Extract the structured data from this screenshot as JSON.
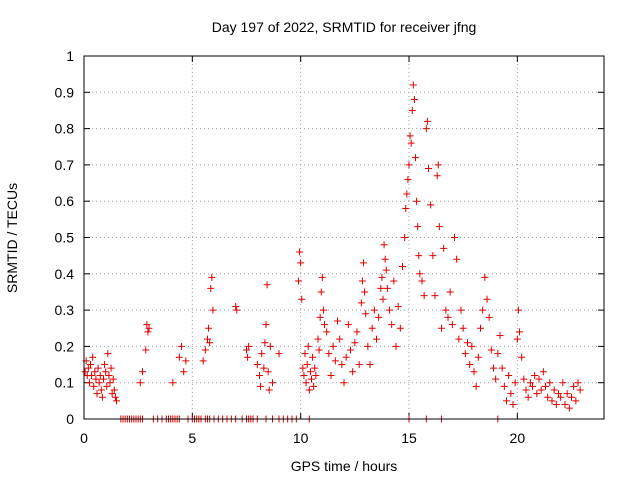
{
  "chart_data": {
    "type": "scatter",
    "title": "Day 197 of 2022, SRMTID for receiver jfng",
    "xlabel": "GPS time / hours",
    "ylabel": "SRMTID / TECUs",
    "xlim": [
      0,
      24
    ],
    "ylim": [
      0,
      1
    ],
    "x_ticks": [
      0,
      5,
      10,
      15,
      20
    ],
    "y_ticks": [
      0,
      0.1,
      0.2,
      0.3,
      0.4,
      0.5,
      0.6,
      0.7,
      0.8,
      0.9,
      1
    ],
    "x_tick_labels": [
      "0",
      "5",
      "10",
      "15",
      "20"
    ],
    "y_tick_labels": [
      "0",
      "0.1",
      "0.2",
      "0.3",
      "0.4",
      "0.5",
      "0.6",
      "0.7",
      "0.8",
      "0.9",
      "1"
    ],
    "grid": true,
    "marker": "+",
    "marker_color": "#e00000",
    "series": [
      {
        "name": "SRMTID",
        "points": [
          [
            0.05,
            0.13
          ],
          [
            0.1,
            0.16
          ],
          [
            0.15,
            0.12
          ],
          [
            0.2,
            0.14
          ],
          [
            0.25,
            0.1
          ],
          [
            0.3,
            0.15
          ],
          [
            0.35,
            0.12
          ],
          [
            0.4,
            0.17
          ],
          [
            0.45,
            0.09
          ],
          [
            0.5,
            0.13
          ],
          [
            0.55,
            0.11
          ],
          [
            0.6,
            0.07
          ],
          [
            0.65,
            0.14
          ],
          [
            0.7,
            0.1
          ],
          [
            0.75,
            0.12
          ],
          [
            0.8,
            0.08
          ],
          [
            0.85,
            0.06
          ],
          [
            0.9,
            0.11
          ],
          [
            0.95,
            0.15
          ],
          [
            1.0,
            0.13
          ],
          [
            1.05,
            0.09
          ],
          [
            1.1,
            0.18
          ],
          [
            1.15,
            0.12
          ],
          [
            1.2,
            0.1
          ],
          [
            1.25,
            0.14
          ],
          [
            1.3,
            0.07
          ],
          [
            1.35,
            0.11
          ],
          [
            1.4,
            0.08
          ],
          [
            1.45,
            0.06
          ],
          [
            1.5,
            0.05
          ],
          [
            2.6,
            0.1
          ],
          [
            2.7,
            0.13
          ],
          [
            2.85,
            0.19
          ],
          [
            2.9,
            0.26
          ],
          [
            2.95,
            0.24
          ],
          [
            3.0,
            0.25
          ],
          [
            4.1,
            0.1
          ],
          [
            4.4,
            0.17
          ],
          [
            4.5,
            0.2
          ],
          [
            4.6,
            0.13
          ],
          [
            4.7,
            0.16
          ],
          [
            5.5,
            0.16
          ],
          [
            5.6,
            0.19
          ],
          [
            5.7,
            0.22
          ],
          [
            5.75,
            0.25
          ],
          [
            5.8,
            0.21
          ],
          [
            5.85,
            0.36
          ],
          [
            5.9,
            0.39
          ],
          [
            5.95,
            0.3
          ],
          [
            7.0,
            0.31
          ],
          [
            7.05,
            0.3
          ],
          [
            7.5,
            0.19
          ],
          [
            7.55,
            0.17
          ],
          [
            7.6,
            0.2
          ],
          [
            8.0,
            0.15
          ],
          [
            8.1,
            0.12
          ],
          [
            8.15,
            0.09
          ],
          [
            8.2,
            0.18
          ],
          [
            8.3,
            0.14
          ],
          [
            8.35,
            0.21
          ],
          [
            8.4,
            0.26
          ],
          [
            8.45,
            0.37
          ],
          [
            8.5,
            0.13
          ],
          [
            8.55,
            0.08
          ],
          [
            8.6,
            0.2
          ],
          [
            8.7,
            0.1
          ],
          [
            9.0,
            0.18
          ],
          [
            9.9,
            0.38
          ],
          [
            9.95,
            0.46
          ],
          [
            10.0,
            0.43
          ],
          [
            10.05,
            0.33
          ],
          [
            10.1,
            0.14
          ],
          [
            10.15,
            0.12
          ],
          [
            10.2,
            0.18
          ],
          [
            10.25,
            0.1
          ],
          [
            10.3,
            0.15
          ],
          [
            10.35,
            0.2
          ],
          [
            10.4,
            0.08
          ],
          [
            10.45,
            0.13
          ],
          [
            10.5,
            0.11
          ],
          [
            10.55,
            0.17
          ],
          [
            10.6,
            0.09
          ],
          [
            10.65,
            0.14
          ],
          [
            10.7,
            0.12
          ],
          [
            10.8,
            0.22
          ],
          [
            10.85,
            0.19
          ],
          [
            10.9,
            0.28
          ],
          [
            10.95,
            0.35
          ],
          [
            11.0,
            0.39
          ],
          [
            11.05,
            0.3
          ],
          [
            11.1,
            0.26
          ],
          [
            11.2,
            0.24
          ],
          [
            11.3,
            0.18
          ],
          [
            11.4,
            0.12
          ],
          [
            11.5,
            0.2
          ],
          [
            11.6,
            0.16
          ],
          [
            11.7,
            0.27
          ],
          [
            11.8,
            0.22
          ],
          [
            11.9,
            0.15
          ],
          [
            12.0,
            0.1
          ],
          [
            12.1,
            0.17
          ],
          [
            12.2,
            0.26
          ],
          [
            12.3,
            0.19
          ],
          [
            12.4,
            0.13
          ],
          [
            12.5,
            0.21
          ],
          [
            12.6,
            0.24
          ],
          [
            12.7,
            0.15
          ],
          [
            12.8,
            0.32
          ],
          [
            12.85,
            0.38
          ],
          [
            12.9,
            0.43
          ],
          [
            12.95,
            0.35
          ],
          [
            13.0,
            0.29
          ],
          [
            13.1,
            0.2
          ],
          [
            13.2,
            0.15
          ],
          [
            13.3,
            0.25
          ],
          [
            13.4,
            0.3
          ],
          [
            13.5,
            0.22
          ],
          [
            13.6,
            0.28
          ],
          [
            13.7,
            0.36
          ],
          [
            13.75,
            0.39
          ],
          [
            13.8,
            0.33
          ],
          [
            13.85,
            0.48
          ],
          [
            13.9,
            0.44
          ],
          [
            13.95,
            0.41
          ],
          [
            14.0,
            0.36
          ],
          [
            14.1,
            0.3
          ],
          [
            14.2,
            0.26
          ],
          [
            14.3,
            0.38
          ],
          [
            14.4,
            0.2
          ],
          [
            14.5,
            0.31
          ],
          [
            14.6,
            0.25
          ],
          [
            14.7,
            0.42
          ],
          [
            14.8,
            0.5
          ],
          [
            14.85,
            0.58
          ],
          [
            14.9,
            0.62
          ],
          [
            14.95,
            0.66
          ],
          [
            15.0,
            0.7
          ],
          [
            15.05,
            0.78
          ],
          [
            15.1,
            0.76
          ],
          [
            15.15,
            0.85
          ],
          [
            15.2,
            0.92
          ],
          [
            15.25,
            0.88
          ],
          [
            15.3,
            0.72
          ],
          [
            15.35,
            0.6
          ],
          [
            15.4,
            0.53
          ],
          [
            15.45,
            0.45
          ],
          [
            15.5,
            0.4
          ],
          [
            15.6,
            0.38
          ],
          [
            15.7,
            0.34
          ],
          [
            15.8,
            0.8
          ],
          [
            15.85,
            0.82
          ],
          [
            15.9,
            0.69
          ],
          [
            16.0,
            0.59
          ],
          [
            16.1,
            0.45
          ],
          [
            16.2,
            0.34
          ],
          [
            16.3,
            0.67
          ],
          [
            16.35,
            0.7
          ],
          [
            16.4,
            0.53
          ],
          [
            16.5,
            0.25
          ],
          [
            16.6,
            0.47
          ],
          [
            16.7,
            0.3
          ],
          [
            16.8,
            0.28
          ],
          [
            16.9,
            0.35
          ],
          [
            17.0,
            0.26
          ],
          [
            17.1,
            0.5
          ],
          [
            17.2,
            0.44
          ],
          [
            17.3,
            0.22
          ],
          [
            17.4,
            0.3
          ],
          [
            17.5,
            0.25
          ],
          [
            17.6,
            0.18
          ],
          [
            17.7,
            0.21
          ],
          [
            17.8,
            0.15
          ],
          [
            17.9,
            0.2
          ],
          [
            18.0,
            0.13
          ],
          [
            18.1,
            0.09
          ],
          [
            18.2,
            0.17
          ],
          [
            18.3,
            0.25
          ],
          [
            18.4,
            0.3
          ],
          [
            18.5,
            0.39
          ],
          [
            18.6,
            0.33
          ],
          [
            18.7,
            0.28
          ],
          [
            18.8,
            0.19
          ],
          [
            18.9,
            0.14
          ],
          [
            19.0,
            0.11
          ],
          [
            19.1,
            0.18
          ],
          [
            19.2,
            0.23
          ],
          [
            19.3,
            0.14
          ],
          [
            19.4,
            0.09
          ],
          [
            19.5,
            0.05
          ],
          [
            19.6,
            0.12
          ],
          [
            19.7,
            0.07
          ],
          [
            19.8,
            0.04
          ],
          [
            19.9,
            0.1
          ],
          [
            20.0,
            0.22
          ],
          [
            20.05,
            0.3
          ],
          [
            20.1,
            0.24
          ],
          [
            20.2,
            0.17
          ],
          [
            20.3,
            0.11
          ],
          [
            20.4,
            0.08
          ],
          [
            20.5,
            0.06
          ],
          [
            20.6,
            0.1
          ],
          [
            20.7,
            0.09
          ],
          [
            20.8,
            0.12
          ],
          [
            20.9,
            0.07
          ],
          [
            21.0,
            0.11
          ],
          [
            21.1,
            0.08
          ],
          [
            21.2,
            0.13
          ],
          [
            21.3,
            0.09
          ],
          [
            21.4,
            0.06
          ],
          [
            21.5,
            0.1
          ],
          [
            21.6,
            0.05
          ],
          [
            21.7,
            0.08
          ],
          [
            21.8,
            0.04
          ],
          [
            21.9,
            0.07
          ],
          [
            22.0,
            0.06
          ],
          [
            22.1,
            0.1
          ],
          [
            22.2,
            0.04
          ],
          [
            22.3,
            0.07
          ],
          [
            22.4,
            0.03
          ],
          [
            22.5,
            0.06
          ],
          [
            22.6,
            0.09
          ],
          [
            22.7,
            0.05
          ],
          [
            22.8,
            0.1
          ],
          [
            22.9,
            0.08
          ],
          [
            1.7,
            0
          ],
          [
            1.8,
            0
          ],
          [
            1.9,
            0
          ],
          [
            2.0,
            0
          ],
          [
            2.1,
            0
          ],
          [
            2.2,
            0
          ],
          [
            2.3,
            0
          ],
          [
            2.4,
            0
          ],
          [
            2.5,
            0
          ],
          [
            2.6,
            0
          ],
          [
            2.7,
            0
          ],
          [
            3.2,
            0
          ],
          [
            3.4,
            0
          ],
          [
            3.6,
            0
          ],
          [
            3.8,
            0
          ],
          [
            3.9,
            0
          ],
          [
            4.0,
            0
          ],
          [
            4.1,
            0
          ],
          [
            4.2,
            0
          ],
          [
            4.3,
            0
          ],
          [
            4.4,
            0
          ],
          [
            4.8,
            0
          ],
          [
            5.0,
            0
          ],
          [
            5.1,
            0
          ],
          [
            5.2,
            0
          ],
          [
            5.3,
            0
          ],
          [
            5.4,
            0
          ],
          [
            5.6,
            0
          ],
          [
            5.7,
            0
          ],
          [
            5.8,
            0
          ],
          [
            6.0,
            0
          ],
          [
            6.2,
            0
          ],
          [
            6.4,
            0
          ],
          [
            6.6,
            0
          ],
          [
            6.8,
            0
          ],
          [
            7.0,
            0
          ],
          [
            7.3,
            0
          ],
          [
            7.5,
            0
          ],
          [
            7.6,
            0
          ],
          [
            7.7,
            0
          ],
          [
            7.8,
            0
          ],
          [
            8.0,
            0
          ],
          [
            8.4,
            0
          ],
          [
            8.7,
            0
          ],
          [
            9.0,
            0
          ],
          [
            9.2,
            0
          ],
          [
            9.4,
            0
          ],
          [
            9.6,
            0
          ],
          [
            9.8,
            0
          ],
          [
            10.4,
            0
          ],
          [
            15.0,
            0
          ],
          [
            15.8,
            0
          ],
          [
            16.5,
            0
          ],
          [
            19.1,
            0
          ]
        ]
      }
    ]
  }
}
